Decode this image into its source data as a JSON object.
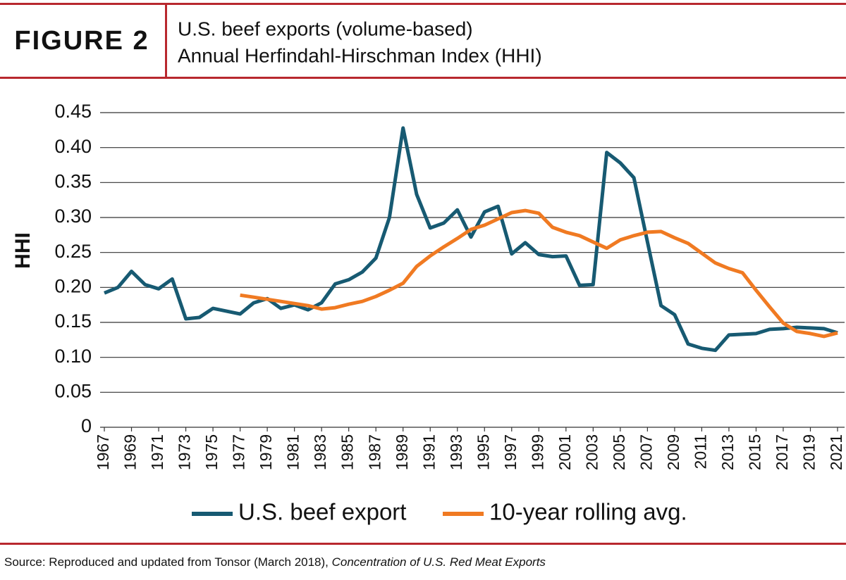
{
  "figure_label": "FIGURE 2",
  "chart_data": {
    "type": "line",
    "title": [
      "U.S. beef exports (volume-based)",
      "Annual Herfindahl-Hirschman Index (HHI)"
    ],
    "ylabel": "HHI",
    "x": [
      1967,
      1968,
      1969,
      1970,
      1971,
      1972,
      1973,
      1974,
      1975,
      1976,
      1977,
      1978,
      1979,
      1980,
      1981,
      1982,
      1983,
      1984,
      1985,
      1986,
      1987,
      1988,
      1989,
      1990,
      1991,
      1992,
      1993,
      1994,
      1995,
      1996,
      1997,
      1998,
      1999,
      2000,
      2001,
      2002,
      2003,
      2004,
      2005,
      2006,
      2007,
      2008,
      2009,
      2010,
      2011,
      2012,
      2013,
      2014,
      2015,
      2016,
      2017,
      2018,
      2019,
      2020,
      2021
    ],
    "xlim": [
      1967,
      2021
    ],
    "xticks": [
      1967,
      1969,
      1971,
      1973,
      1975,
      1977,
      1979,
      1981,
      1983,
      1985,
      1987,
      1989,
      1991,
      1993,
      1995,
      1997,
      1999,
      2001,
      2003,
      2005,
      2007,
      2009,
      2011,
      2013,
      2015,
      2017,
      2019,
      2021
    ],
    "ylim": [
      0,
      0.45
    ],
    "yticks": [
      0,
      0.05,
      {
        "value": 0.1,
        "label": "0.10"
      },
      0.15,
      {
        "value": 0.2,
        "label": "0.20"
      },
      0.25,
      {
        "value": 0.3,
        "label": "0.30"
      },
      0.35,
      {
        "value": 0.4,
        "label": "0.40"
      },
      0.45
    ],
    "grid": true,
    "legend": "bottom",
    "series": [
      {
        "name": "U.S. beef export",
        "color": "#175a72",
        "values": [
          0.192,
          0.2,
          0.223,
          0.204,
          0.198,
          0.212,
          0.155,
          0.157,
          0.17,
          0.166,
          0.162,
          0.178,
          0.184,
          0.17,
          0.175,
          0.168,
          0.178,
          0.205,
          0.211,
          0.222,
          0.242,
          0.3,
          0.428,
          0.333,
          0.285,
          0.292,
          0.311,
          0.272,
          0.308,
          0.316,
          0.248,
          0.264,
          0.247,
          0.244,
          0.245,
          0.203,
          0.204,
          0.393,
          0.378,
          0.357,
          0.265,
          0.174,
          0.161,
          0.119,
          0.113,
          0.11,
          0.132,
          0.133,
          0.134,
          0.14,
          0.141,
          0.143,
          0.142,
          0.141,
          0.135
        ]
      },
      {
        "name": "10-year rolling avg.",
        "color": "#f07a22",
        "values": [
          null,
          null,
          null,
          null,
          null,
          null,
          null,
          null,
          null,
          null,
          0.189,
          0.186,
          0.183,
          0.18,
          0.177,
          0.174,
          0.169,
          0.171,
          0.176,
          0.18,
          0.187,
          0.196,
          0.206,
          0.23,
          0.245,
          0.258,
          0.27,
          0.283,
          0.289,
          0.298,
          0.307,
          0.31,
          0.306,
          0.286,
          0.279,
          0.274,
          0.265,
          0.256,
          0.268,
          0.274,
          0.279,
          0.28,
          0.271,
          0.263,
          0.249,
          0.235,
          0.227,
          0.221,
          0.196,
          0.172,
          0.149,
          0.137,
          0.134,
          0.13,
          0.135
        ]
      }
    ]
  },
  "source": "Source: Reproduced and updated from Tonsor (March 2018), ",
  "source_title": "Concentration of U.S. Red Meat Exports"
}
